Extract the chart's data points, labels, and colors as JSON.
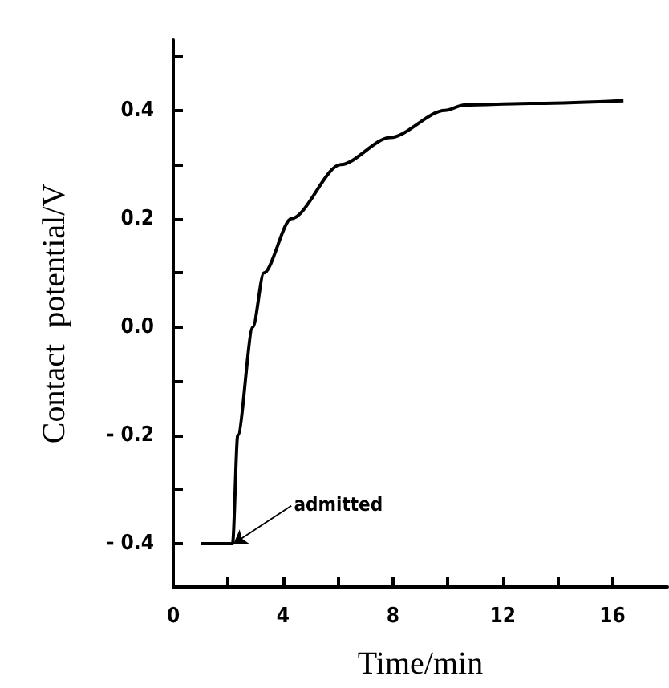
{
  "chart_data": {
    "type": "line",
    "xlabel": "Time/min",
    "ylabel": "Contact  potential/V",
    "xlim": [
      0,
      18
    ],
    "ylim": [
      -0.48,
      0.53
    ],
    "xticks": [
      0,
      {
        "value": 2,
        "label": null
      },
      4,
      {
        "value": 6,
        "label": null
      },
      8,
      {
        "value": 10,
        "label": null
      },
      12,
      {
        "value": 14,
        "label": null
      },
      16
    ],
    "yticks": [
      {
        "value": -0.4,
        "label": "- 0.4"
      },
      {
        "value": -0.3,
        "label": null
      },
      {
        "value": -0.2,
        "label": "- 0.2"
      },
      {
        "value": -0.1,
        "label": null
      },
      {
        "value": 0,
        "label": "0.0"
      },
      {
        "value": 0.1,
        "label": null
      },
      {
        "value": 0.2,
        "label": "0.2"
      },
      {
        "value": 0.3,
        "label": null
      },
      {
        "value": 0.4,
        "label": "0.4"
      },
      {
        "value": 0.5,
        "label": null
      }
    ],
    "series": [
      {
        "color": "#000000",
        "x": [
          1.0,
          2.16,
          2.35,
          2.9,
          3.3,
          4.3,
          6.1,
          7.9,
          9.9,
          10.6,
          13,
          16.4
        ],
        "values": [
          -0.4,
          -0.4,
          -0.2,
          0.0,
          0.1,
          0.2,
          0.3,
          0.35,
          0.4,
          0.41,
          0.413,
          0.418
        ]
      }
    ],
    "annotations": [
      {
        "text": "admitted",
        "x": 2.2,
        "y": -0.4
      }
    ],
    "marker": "none",
    "line_style": "solid"
  }
}
